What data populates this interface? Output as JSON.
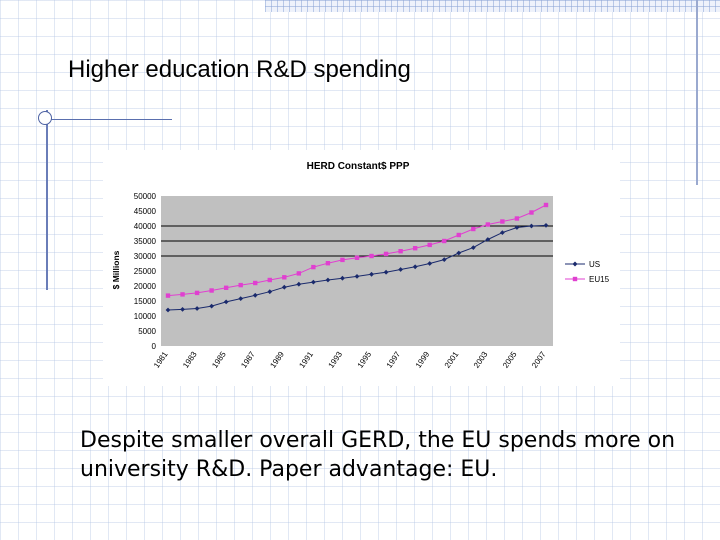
{
  "slide": {
    "title": "Higher education R&D spending",
    "body_lines": [
      "Despite smaller overall GERD, the EU spends more on",
      "university R&D.  Paper advantage: EU."
    ]
  },
  "colors": {
    "plot_background": "#c0c0c0",
    "us_series": "#1a2a6c",
    "eu15_series": "#e040d0",
    "slide_rule": "#5a6fae"
  },
  "chart_data": {
    "type": "line",
    "title": "HERD Constant$ PPP",
    "xlabel": "",
    "ylabel": "$ Millions",
    "ylim": [
      0,
      50000
    ],
    "yticks": [
      0,
      5000,
      10000,
      15000,
      20000,
      25000,
      30000,
      35000,
      40000,
      45000,
      50000
    ],
    "x": [
      1981,
      1982,
      1983,
      1984,
      1985,
      1986,
      1987,
      1988,
      1989,
      1990,
      1991,
      1992,
      1993,
      1994,
      1995,
      1996,
      1997,
      1998,
      1999,
      2000,
      2001,
      2002,
      2003,
      2004,
      2005,
      2006,
      2007
    ],
    "xtick_labels": [
      "1981",
      "1983",
      "1985",
      "1987",
      "1989",
      "1991",
      "1993",
      "1995",
      "1997",
      "1999",
      "2001",
      "2003",
      "2005",
      "2007"
    ],
    "gridlines": [
      40000,
      35000,
      30000
    ],
    "legend_position": "right",
    "series": [
      {
        "name": "US",
        "marker": "diamond",
        "values": [
          12000,
          12200,
          12500,
          13300,
          14700,
          15800,
          16900,
          18100,
          19600,
          20600,
          21300,
          22000,
          22600,
          23200,
          23900,
          24600,
          25500,
          26400,
          27500,
          28800,
          31000,
          32800,
          35500,
          37800,
          39500,
          40000,
          40200
        ]
      },
      {
        "name": "EU15",
        "marker": "square",
        "values": [
          16800,
          17200,
          17700,
          18500,
          19400,
          20300,
          21000,
          22000,
          22900,
          24200,
          26300,
          27600,
          28700,
          29400,
          30000,
          30700,
          31600,
          32600,
          33700,
          35000,
          37000,
          39000,
          40500,
          41500,
          42500,
          44500,
          47000
        ]
      }
    ]
  }
}
